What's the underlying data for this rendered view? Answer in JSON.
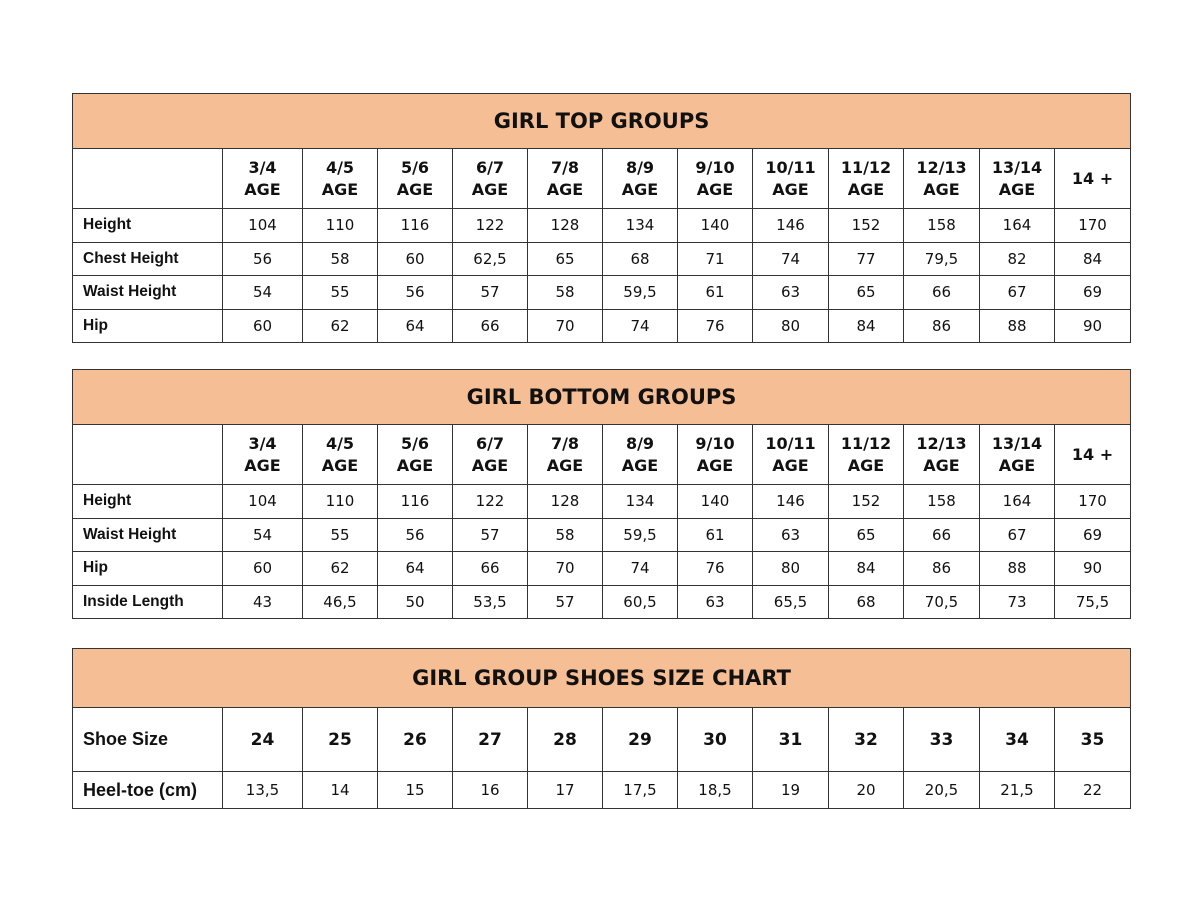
{
  "tables": [
    {
      "title": "GIRL TOP GROUPS",
      "header_style": "age",
      "columns": [
        [
          "3/4",
          "AGE"
        ],
        [
          "4/5",
          "AGE"
        ],
        [
          "5/6",
          "AGE"
        ],
        [
          "6/7",
          "AGE"
        ],
        [
          "7/8",
          "AGE"
        ],
        [
          "8/9",
          "AGE"
        ],
        [
          "9/10",
          "AGE"
        ],
        [
          "10/11",
          "AGE"
        ],
        [
          "11/12",
          "AGE"
        ],
        [
          "12/13",
          "AGE"
        ],
        [
          "13/14",
          "AGE"
        ],
        [
          "14 +",
          ""
        ]
      ],
      "rows": [
        {
          "label": "Height",
          "values": [
            "104",
            "110",
            "116",
            "122",
            "128",
            "134",
            "140",
            "146",
            "152",
            "158",
            "164",
            "170"
          ]
        },
        {
          "label": "Chest Height",
          "values": [
            "56",
            "58",
            "60",
            "62,5",
            "65",
            "68",
            "71",
            "74",
            "77",
            "79,5",
            "82",
            "84"
          ]
        },
        {
          "label": "Waist Height",
          "values": [
            "54",
            "55",
            "56",
            "57",
            "58",
            "59,5",
            "61",
            "63",
            "65",
            "66",
            "67",
            "69"
          ]
        },
        {
          "label": "Hip",
          "values": [
            "60",
            "62",
            "64",
            "66",
            "70",
            "74",
            "76",
            "80",
            "84",
            "86",
            "88",
            "90"
          ]
        }
      ]
    },
    {
      "title": "GIRL BOTTOM GROUPS",
      "header_style": "age",
      "columns": [
        [
          "3/4",
          "AGE"
        ],
        [
          "4/5",
          "AGE"
        ],
        [
          "5/6",
          "AGE"
        ],
        [
          "6/7",
          "AGE"
        ],
        [
          "7/8",
          "AGE"
        ],
        [
          "8/9",
          "AGE"
        ],
        [
          "9/10",
          "AGE"
        ],
        [
          "10/11",
          "AGE"
        ],
        [
          "11/12",
          "AGE"
        ],
        [
          "12/13",
          "AGE"
        ],
        [
          "13/14",
          "AGE"
        ],
        [
          "14 +",
          ""
        ]
      ],
      "rows": [
        {
          "label": "Height",
          "values": [
            "104",
            "110",
            "116",
            "122",
            "128",
            "134",
            "140",
            "146",
            "152",
            "158",
            "164",
            "170"
          ]
        },
        {
          "label": "Waist Height",
          "values": [
            "54",
            "55",
            "56",
            "57",
            "58",
            "59,5",
            "61",
            "63",
            "65",
            "66",
            "67",
            "69"
          ]
        },
        {
          "label": "Hip",
          "values": [
            "60",
            "62",
            "64",
            "66",
            "70",
            "74",
            "76",
            "80",
            "84",
            "86",
            "88",
            "90"
          ]
        },
        {
          "label": "Inside Length",
          "values": [
            "43",
            "46,5",
            "50",
            "53,5",
            "57",
            "60,5",
            "63",
            "65,5",
            "68",
            "70,5",
            "73",
            "75,5"
          ]
        }
      ]
    },
    {
      "title": "GIRL GROUP SHOES SIZE CHART",
      "header_style": "shoe",
      "header_label": "Shoe Size",
      "columns": [
        [
          "24"
        ],
        [
          "25"
        ],
        [
          "26"
        ],
        [
          "27"
        ],
        [
          "28"
        ],
        [
          "29"
        ],
        [
          "30"
        ],
        [
          "31"
        ],
        [
          "32"
        ],
        [
          "33"
        ],
        [
          "34"
        ],
        [
          "35"
        ]
      ],
      "rows": [
        {
          "label": "Heel-toe (cm)",
          "values": [
            "13,5",
            "14",
            "15",
            "16",
            "17",
            "17,5",
            "18,5",
            "19",
            "20",
            "20,5",
            "21,5",
            "22"
          ]
        }
      ]
    }
  ],
  "colors": {
    "title_band": "#F6BE95",
    "border": "#333333"
  }
}
